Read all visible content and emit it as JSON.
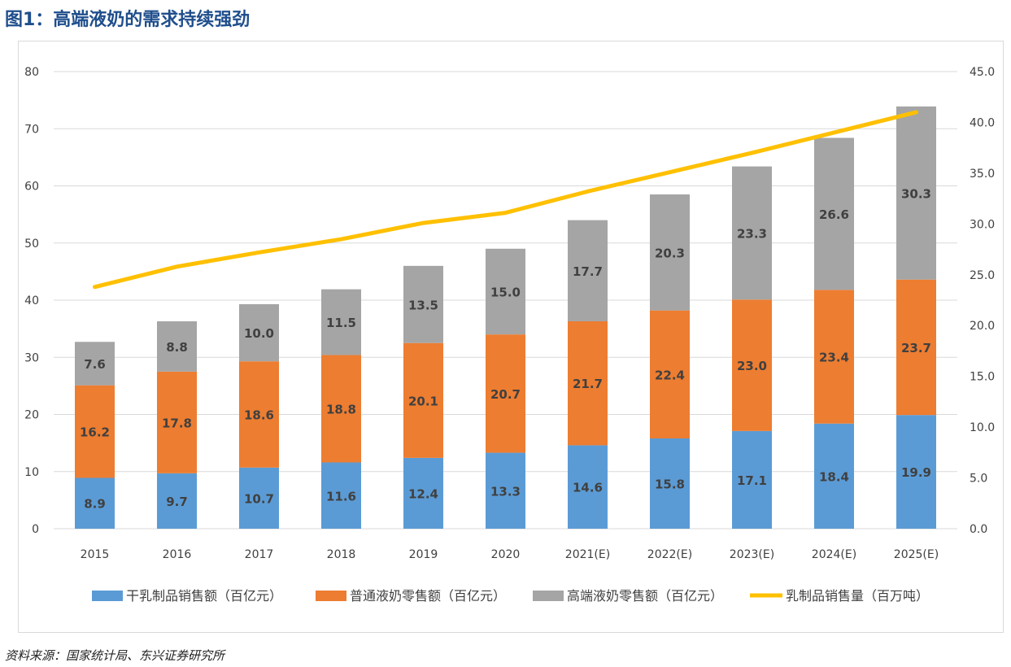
{
  "page": {
    "title": "图1：高端液奶的需求持续强劲",
    "source": "资料来源：国家统计局、东兴证券研究所"
  },
  "colors": {
    "title": "#1f4e8c",
    "dry_milk": "#5b9bd5",
    "regular_liquid": "#ed7d31",
    "premium_liquid": "#a5a5a5",
    "volume_line": "#ffc000"
  },
  "chart_data": {
    "type": "bar",
    "stacked": true,
    "categories": [
      "2015",
      "2016",
      "2017",
      "2018",
      "2019",
      "2020",
      "2021(E)",
      "2022(E)",
      "2023(E)",
      "2024(E)",
      "2025(E)"
    ],
    "series": [
      {
        "name": "干乳制品销售额（百亿元）",
        "type": "bar",
        "axis": "left",
        "values": [
          8.9,
          9.7,
          10.7,
          11.6,
          12.4,
          13.3,
          14.6,
          15.8,
          17.1,
          18.4,
          19.9
        ]
      },
      {
        "name": "普通液奶零售额（百亿元）",
        "type": "bar",
        "axis": "left",
        "values": [
          16.2,
          17.8,
          18.6,
          18.8,
          20.1,
          20.7,
          21.7,
          22.4,
          23.0,
          23.4,
          23.7
        ]
      },
      {
        "name": "高端液奶零售额（百亿元）",
        "type": "bar",
        "axis": "left",
        "values": [
          7.6,
          8.8,
          10.0,
          11.5,
          13.5,
          15.0,
          17.7,
          20.3,
          23.3,
          26.6,
          30.3
        ]
      },
      {
        "name": "乳制品销售量（百万吨）",
        "type": "line",
        "axis": "right",
        "values": [
          23.8,
          25.8,
          27.2,
          28.5,
          30.1,
          31.1,
          33.2,
          35.1,
          37.0,
          39.0,
          41.0
        ]
      }
    ],
    "y_left": {
      "ylim": [
        0,
        80
      ],
      "ticks": [
        "0",
        "10",
        "20",
        "30",
        "40",
        "50",
        "60",
        "70",
        "80"
      ]
    },
    "y_right": {
      "ylim": [
        0,
        45
      ],
      "ticks": [
        "0.0",
        "5.0",
        "10.0",
        "15.0",
        "20.0",
        "25.0",
        "30.0",
        "35.0",
        "40.0",
        "45.0"
      ]
    },
    "grid": true,
    "legend_position": "bottom"
  }
}
